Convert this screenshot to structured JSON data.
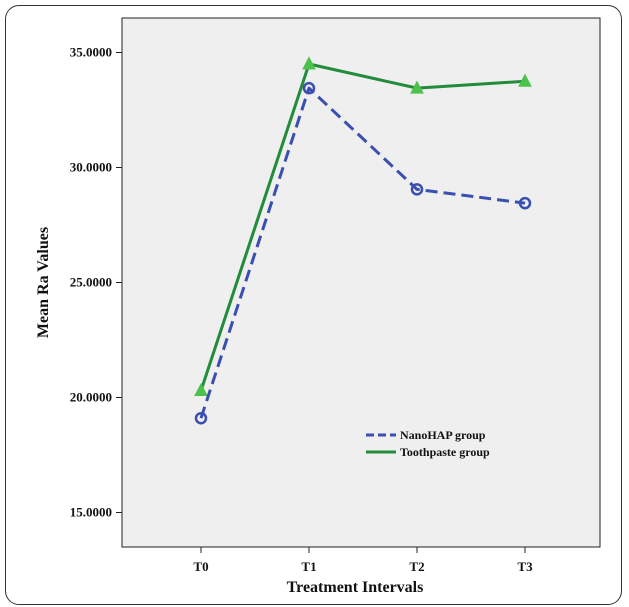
{
  "chart_data": {
    "type": "line",
    "xlabel": "Treatment Intervals",
    "ylabel": "Mean Ra Values",
    "categories": [
      "T0",
      "T1",
      "T2",
      "T3"
    ],
    "ylim": [
      13.5,
      36.5
    ],
    "yticks": [
      15.0,
      20.0,
      25.0,
      30.0,
      35.0
    ],
    "ytick_labels": [
      "15.0000",
      "20.0000",
      "25.0000",
      "30.0000",
      "35.0000"
    ],
    "grid": false,
    "legend_position": "lower-right",
    "plot_background": "#efefef",
    "series": [
      {
        "name": "NanoHAP group",
        "values": [
          19.1,
          33.45,
          29.05,
          28.45
        ],
        "color": "#3a4fb0",
        "line_style": "dashed",
        "marker": "circle"
      },
      {
        "name": "Toothpaste group",
        "values": [
          20.3,
          34.5,
          33.45,
          33.75
        ],
        "color": "#228b3c",
        "line_style": "solid",
        "marker": "triangle",
        "marker_color": "#4cc24c"
      }
    ]
  }
}
